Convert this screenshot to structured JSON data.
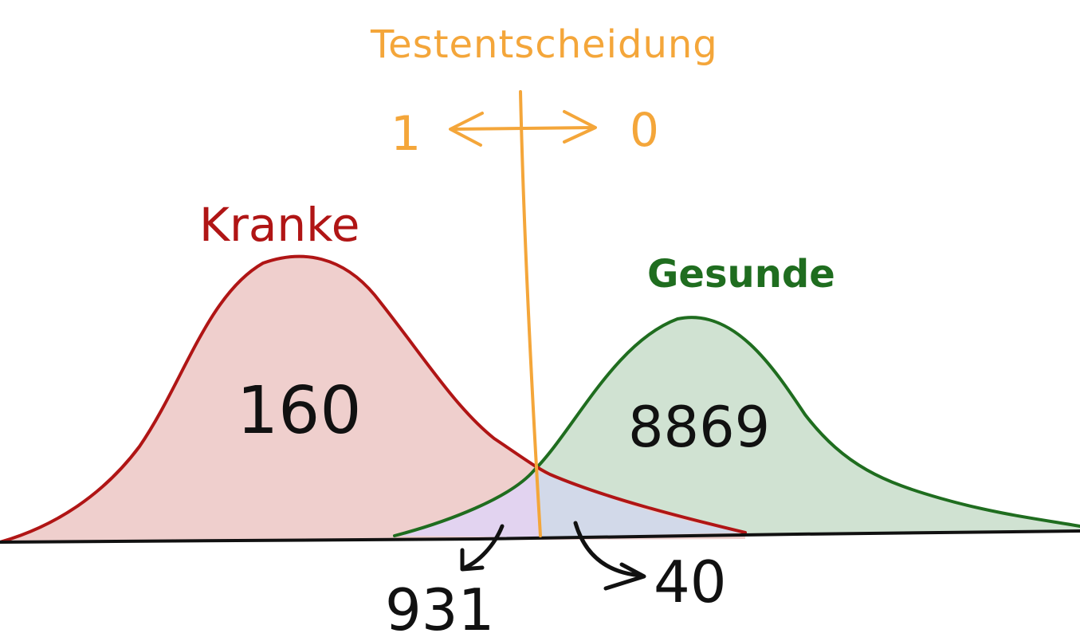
{
  "title": "Testentscheidung",
  "decision": {
    "left_label": "1",
    "right_label": "0"
  },
  "groups": {
    "sick": {
      "label": "Kranke",
      "count": "160",
      "color": "#b01515",
      "fill": "#efcfcd"
    },
    "healthy": {
      "label": "Gesunde",
      "count": "8869",
      "color": "#1f6d1f",
      "fill": "#d0e2d2"
    }
  },
  "overlap": {
    "left_count": "931",
    "right_count": "40",
    "left_fill": "#e2d3f0",
    "right_fill": "#d2d9e9"
  },
  "colors": {
    "threshold": "#f4a63a",
    "axis": "#111111",
    "numbers": "#111111"
  }
}
